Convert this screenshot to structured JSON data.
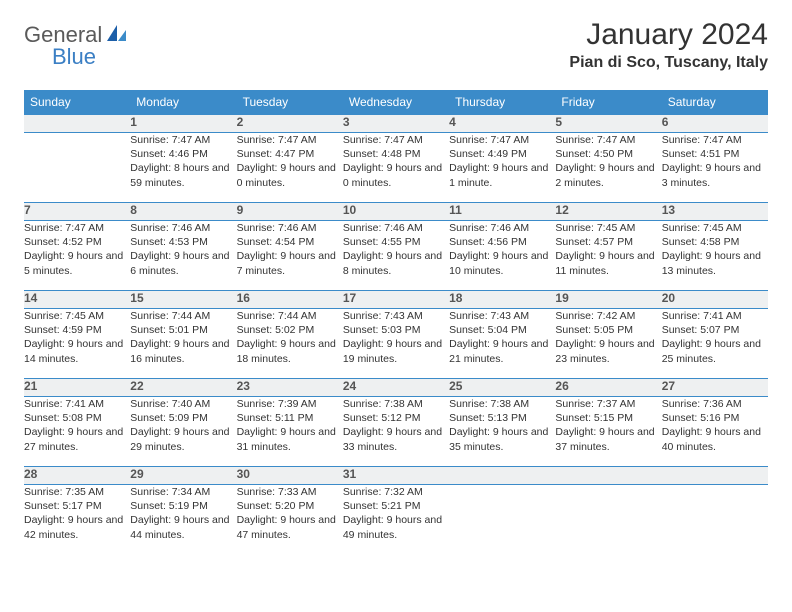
{
  "brand": {
    "part1": "General",
    "part2": "Blue"
  },
  "title": "January 2024",
  "location": "Pian di Sco, Tuscany, Italy",
  "daysOfWeek": [
    "Sunday",
    "Monday",
    "Tuesday",
    "Wednesday",
    "Thursday",
    "Friday",
    "Saturday"
  ],
  "colors": {
    "header_bg": "#3b8bc9",
    "header_text": "#ffffff",
    "daynum_bg": "#eef0f1",
    "border": "#3b8bc9",
    "brand_gray": "#5a5a5a",
    "brand_blue": "#3b7fc4"
  },
  "weeks": [
    [
      {
        "n": "",
        "sunrise": "",
        "sunset": "",
        "daylight": ""
      },
      {
        "n": "1",
        "sunrise": "Sunrise: 7:47 AM",
        "sunset": "Sunset: 4:46 PM",
        "daylight": "Daylight: 8 hours and 59 minutes."
      },
      {
        "n": "2",
        "sunrise": "Sunrise: 7:47 AM",
        "sunset": "Sunset: 4:47 PM",
        "daylight": "Daylight: 9 hours and 0 minutes."
      },
      {
        "n": "3",
        "sunrise": "Sunrise: 7:47 AM",
        "sunset": "Sunset: 4:48 PM",
        "daylight": "Daylight: 9 hours and 0 minutes."
      },
      {
        "n": "4",
        "sunrise": "Sunrise: 7:47 AM",
        "sunset": "Sunset: 4:49 PM",
        "daylight": "Daylight: 9 hours and 1 minute."
      },
      {
        "n": "5",
        "sunrise": "Sunrise: 7:47 AM",
        "sunset": "Sunset: 4:50 PM",
        "daylight": "Daylight: 9 hours and 2 minutes."
      },
      {
        "n": "6",
        "sunrise": "Sunrise: 7:47 AM",
        "sunset": "Sunset: 4:51 PM",
        "daylight": "Daylight: 9 hours and 3 minutes."
      }
    ],
    [
      {
        "n": "7",
        "sunrise": "Sunrise: 7:47 AM",
        "sunset": "Sunset: 4:52 PM",
        "daylight": "Daylight: 9 hours and 5 minutes."
      },
      {
        "n": "8",
        "sunrise": "Sunrise: 7:46 AM",
        "sunset": "Sunset: 4:53 PM",
        "daylight": "Daylight: 9 hours and 6 minutes."
      },
      {
        "n": "9",
        "sunrise": "Sunrise: 7:46 AM",
        "sunset": "Sunset: 4:54 PM",
        "daylight": "Daylight: 9 hours and 7 minutes."
      },
      {
        "n": "10",
        "sunrise": "Sunrise: 7:46 AM",
        "sunset": "Sunset: 4:55 PM",
        "daylight": "Daylight: 9 hours and 8 minutes."
      },
      {
        "n": "11",
        "sunrise": "Sunrise: 7:46 AM",
        "sunset": "Sunset: 4:56 PM",
        "daylight": "Daylight: 9 hours and 10 minutes."
      },
      {
        "n": "12",
        "sunrise": "Sunrise: 7:45 AM",
        "sunset": "Sunset: 4:57 PM",
        "daylight": "Daylight: 9 hours and 11 minutes."
      },
      {
        "n": "13",
        "sunrise": "Sunrise: 7:45 AM",
        "sunset": "Sunset: 4:58 PM",
        "daylight": "Daylight: 9 hours and 13 minutes."
      }
    ],
    [
      {
        "n": "14",
        "sunrise": "Sunrise: 7:45 AM",
        "sunset": "Sunset: 4:59 PM",
        "daylight": "Daylight: 9 hours and 14 minutes."
      },
      {
        "n": "15",
        "sunrise": "Sunrise: 7:44 AM",
        "sunset": "Sunset: 5:01 PM",
        "daylight": "Daylight: 9 hours and 16 minutes."
      },
      {
        "n": "16",
        "sunrise": "Sunrise: 7:44 AM",
        "sunset": "Sunset: 5:02 PM",
        "daylight": "Daylight: 9 hours and 18 minutes."
      },
      {
        "n": "17",
        "sunrise": "Sunrise: 7:43 AM",
        "sunset": "Sunset: 5:03 PM",
        "daylight": "Daylight: 9 hours and 19 minutes."
      },
      {
        "n": "18",
        "sunrise": "Sunrise: 7:43 AM",
        "sunset": "Sunset: 5:04 PM",
        "daylight": "Daylight: 9 hours and 21 minutes."
      },
      {
        "n": "19",
        "sunrise": "Sunrise: 7:42 AM",
        "sunset": "Sunset: 5:05 PM",
        "daylight": "Daylight: 9 hours and 23 minutes."
      },
      {
        "n": "20",
        "sunrise": "Sunrise: 7:41 AM",
        "sunset": "Sunset: 5:07 PM",
        "daylight": "Daylight: 9 hours and 25 minutes."
      }
    ],
    [
      {
        "n": "21",
        "sunrise": "Sunrise: 7:41 AM",
        "sunset": "Sunset: 5:08 PM",
        "daylight": "Daylight: 9 hours and 27 minutes."
      },
      {
        "n": "22",
        "sunrise": "Sunrise: 7:40 AM",
        "sunset": "Sunset: 5:09 PM",
        "daylight": "Daylight: 9 hours and 29 minutes."
      },
      {
        "n": "23",
        "sunrise": "Sunrise: 7:39 AM",
        "sunset": "Sunset: 5:11 PM",
        "daylight": "Daylight: 9 hours and 31 minutes."
      },
      {
        "n": "24",
        "sunrise": "Sunrise: 7:38 AM",
        "sunset": "Sunset: 5:12 PM",
        "daylight": "Daylight: 9 hours and 33 minutes."
      },
      {
        "n": "25",
        "sunrise": "Sunrise: 7:38 AM",
        "sunset": "Sunset: 5:13 PM",
        "daylight": "Daylight: 9 hours and 35 minutes."
      },
      {
        "n": "26",
        "sunrise": "Sunrise: 7:37 AM",
        "sunset": "Sunset: 5:15 PM",
        "daylight": "Daylight: 9 hours and 37 minutes."
      },
      {
        "n": "27",
        "sunrise": "Sunrise: 7:36 AM",
        "sunset": "Sunset: 5:16 PM",
        "daylight": "Daylight: 9 hours and 40 minutes."
      }
    ],
    [
      {
        "n": "28",
        "sunrise": "Sunrise: 7:35 AM",
        "sunset": "Sunset: 5:17 PM",
        "daylight": "Daylight: 9 hours and 42 minutes."
      },
      {
        "n": "29",
        "sunrise": "Sunrise: 7:34 AM",
        "sunset": "Sunset: 5:19 PM",
        "daylight": "Daylight: 9 hours and 44 minutes."
      },
      {
        "n": "30",
        "sunrise": "Sunrise: 7:33 AM",
        "sunset": "Sunset: 5:20 PM",
        "daylight": "Daylight: 9 hours and 47 minutes."
      },
      {
        "n": "31",
        "sunrise": "Sunrise: 7:32 AM",
        "sunset": "Sunset: 5:21 PM",
        "daylight": "Daylight: 9 hours and 49 minutes."
      },
      {
        "n": "",
        "sunrise": "",
        "sunset": "",
        "daylight": ""
      },
      {
        "n": "",
        "sunrise": "",
        "sunset": "",
        "daylight": ""
      },
      {
        "n": "",
        "sunrise": "",
        "sunset": "",
        "daylight": ""
      }
    ]
  ]
}
